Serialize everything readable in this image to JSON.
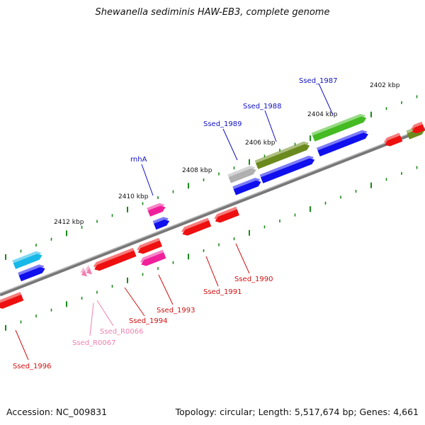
{
  "header": {
    "title": "Shewanella sediminis HAW-EB3, complete genome"
  },
  "footer": {
    "accession": "Accession: NC_009831",
    "summary": "Topology: circular; Length: 5,517,674 bp; Genes: 4,661"
  },
  "scale": {
    "labels": [
      "2402 kbp",
      "2404 kbp",
      "2406 kbp",
      "2408 kbp",
      "2410 kbp",
      "2412 kbp"
    ]
  },
  "gene_labels_forward": [
    "Ssed_1987",
    "Ssed_1988",
    "Ssed_1989",
    "rnhA"
  ],
  "gene_labels_reverse": [
    "Ssed_1990",
    "Ssed_1991",
    "Ssed_1993",
    "Ssed_1994",
    "Ssed_R0066",
    "Ssed_R0067",
    "Ssed_1996"
  ],
  "colors": {
    "forward_label": "#1010c0",
    "reverse_label": "#d01010",
    "rna_label": "#f080b0",
    "cds_blue": "#1010ee",
    "cds_red": "#ee1010",
    "cds_green": "#44bb22",
    "cds_olive": "#6b8a1e",
    "cds_cyan": "#18b8e8",
    "cds_pink": "#f0209a",
    "cds_grey": "#b0b0b0",
    "tick_green": "#1a8a1a"
  }
}
